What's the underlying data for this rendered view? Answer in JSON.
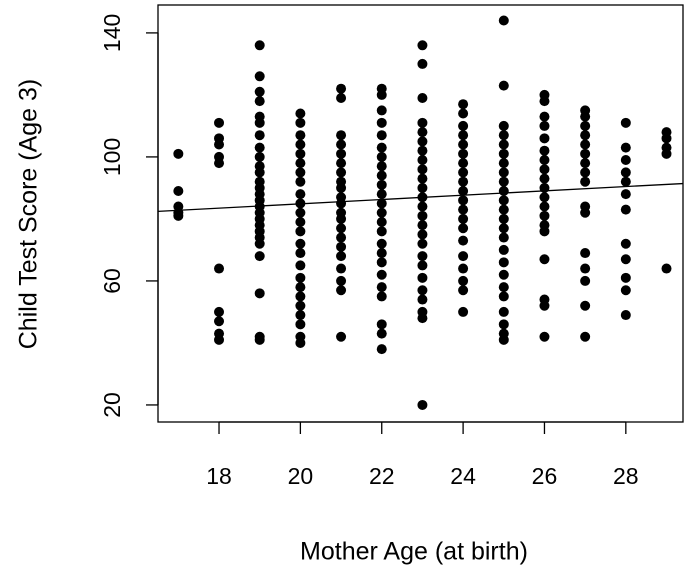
{
  "chart_data": {
    "type": "scatter",
    "x_label": "Mother Age (at birth)",
    "y_label": "Child Test Score (Age 3)",
    "xlim": [
      16.5,
      29.43
    ],
    "ylim": [
      14.5,
      149
    ],
    "xticks": [
      18,
      20,
      22,
      24,
      26,
      28
    ],
    "yticks": [
      20,
      60,
      100,
      140
    ],
    "color": "#000000",
    "regression": {
      "intercept": 70.96,
      "slope": 0.695
    },
    "x": [
      17,
      17,
      17,
      17,
      17,
      18,
      18,
      18,
      18,
      18,
      18,
      18,
      18,
      18,
      18,
      19,
      19,
      19,
      19,
      19,
      19,
      19,
      19,
      19,
      19,
      19,
      19,
      19,
      19,
      19,
      19,
      19,
      19,
      19,
      19,
      19,
      19,
      19,
      19,
      19,
      19,
      20,
      20,
      20,
      20,
      20,
      20,
      20,
      20,
      20,
      20,
      20,
      20,
      20,
      20,
      20,
      20,
      20,
      20,
      20,
      20,
      20,
      20,
      20,
      20,
      21,
      21,
      21,
      21,
      21,
      21,
      21,
      21,
      21,
      21,
      21,
      21,
      21,
      21,
      21,
      21,
      21,
      21,
      21,
      21,
      21,
      22,
      22,
      22,
      22,
      22,
      22,
      22,
      22,
      22,
      22,
      22,
      22,
      22,
      22,
      22,
      22,
      22,
      22,
      22,
      22,
      22,
      22,
      22,
      22,
      23,
      23,
      23,
      23,
      23,
      23,
      23,
      23,
      23,
      23,
      23,
      23,
      23,
      23,
      23,
      23,
      23,
      23,
      23,
      23,
      23,
      23,
      23,
      23,
      23,
      24,
      24,
      24,
      24,
      24,
      24,
      24,
      24,
      24,
      24,
      24,
      24,
      24,
      24,
      24,
      24,
      24,
      24,
      24,
      24,
      25,
      25,
      25,
      25,
      25,
      25,
      25,
      25,
      25,
      25,
      25,
      25,
      25,
      25,
      25,
      25,
      25,
      25,
      25,
      25,
      25,
      25,
      25,
      25,
      26,
      26,
      26,
      26,
      26,
      26,
      26,
      26,
      26,
      26,
      26,
      26,
      26,
      26,
      26,
      26,
      26,
      26,
      26,
      27,
      27,
      27,
      27,
      27,
      27,
      27,
      27,
      27,
      27,
      27,
      27,
      27,
      27,
      27,
      27,
      28,
      28,
      28,
      28,
      28,
      28,
      28,
      28,
      28,
      28,
      28,
      28,
      29,
      29,
      29,
      29,
      29
    ],
    "y": [
      101,
      89,
      84,
      82,
      81,
      111,
      106,
      104,
      100,
      98,
      64,
      50,
      47,
      43,
      41,
      136,
      126,
      121,
      118,
      113,
      111,
      107,
      103,
      100,
      97,
      95,
      92,
      90,
      88,
      86,
      84,
      82,
      80,
      78,
      76,
      74,
      72,
      68,
      56,
      42,
      41,
      114,
      111,
      107,
      104,
      101,
      98,
      95,
      92,
      88,
      85,
      82,
      79,
      76,
      72,
      69,
      65,
      61,
      58,
      55,
      52,
      49,
      46,
      42,
      40,
      122,
      119,
      107,
      104,
      101,
      98,
      95,
      92,
      90,
      87,
      85,
      82,
      80,
      77,
      74,
      71,
      68,
      64,
      60,
      57,
      42,
      122,
      120,
      115,
      111,
      107,
      103,
      100,
      97,
      94,
      91,
      88,
      85,
      82,
      79,
      76,
      72,
      69,
      66,
      62,
      58,
      55,
      46,
      43,
      38,
      136,
      130,
      119,
      111,
      108,
      105,
      102,
      99,
      96,
      93,
      90,
      87,
      84,
      81,
      78,
      75,
      72,
      68,
      65,
      61,
      57,
      54,
      50,
      48,
      20,
      117,
      114,
      110,
      107,
      104,
      101,
      98,
      95,
      92,
      89,
      86,
      83,
      80,
      77,
      73,
      68,
      64,
      60,
      57,
      50,
      144,
      123,
      110,
      107,
      104,
      101,
      98,
      95,
      92,
      89,
      86,
      83,
      80,
      77,
      74,
      70,
      66,
      62,
      58,
      55,
      50,
      46,
      43,
      41,
      120,
      118,
      113,
      110,
      106,
      102,
      99,
      96,
      93,
      90,
      87,
      84,
      81,
      78,
      76,
      67,
      54,
      52,
      42,
      115,
      113,
      110,
      107,
      104,
      101,
      98,
      95,
      92,
      84,
      82,
      69,
      64,
      60,
      52,
      42,
      111,
      103,
      99,
      95,
      92,
      88,
      83,
      72,
      67,
      61,
      57,
      49,
      108,
      106,
      103,
      101,
      64
    ]
  }
}
